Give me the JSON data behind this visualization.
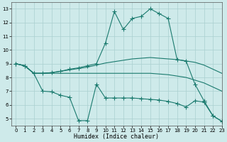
{
  "xlabel": "Humidex (Indice chaleur)",
  "xlim": [
    -0.5,
    23
  ],
  "ylim": [
    4.5,
    13.5
  ],
  "yticks": [
    5,
    6,
    7,
    8,
    9,
    10,
    11,
    12,
    13
  ],
  "xticks": [
    0,
    1,
    2,
    3,
    4,
    5,
    6,
    7,
    8,
    9,
    10,
    11,
    12,
    13,
    14,
    15,
    16,
    17,
    18,
    19,
    20,
    21,
    22,
    23
  ],
  "bg_color": "#ceeaea",
  "line_color": "#1a7a6e",
  "grid_color": "#aad0d0",
  "line1_x": [
    0,
    1,
    2,
    3,
    4,
    5,
    6,
    7,
    8,
    9,
    10,
    11,
    12,
    13,
    14,
    15,
    16,
    17,
    18,
    19,
    20,
    21,
    22,
    23
  ],
  "line1_y": [
    9.0,
    8.85,
    8.3,
    8.3,
    8.35,
    8.45,
    8.55,
    8.65,
    8.75,
    8.9,
    9.05,
    9.15,
    9.25,
    9.35,
    9.4,
    9.45,
    9.4,
    9.35,
    9.3,
    9.2,
    9.1,
    8.9,
    8.6,
    8.3
  ],
  "line2_x": [
    0,
    1,
    2,
    3,
    4,
    5,
    6,
    7,
    8,
    9,
    10,
    11,
    12,
    13,
    14,
    15,
    16,
    17,
    18,
    19,
    20,
    21,
    22,
    23
  ],
  "line2_y": [
    9.0,
    8.85,
    8.3,
    8.3,
    8.3,
    8.3,
    8.3,
    8.3,
    8.3,
    8.3,
    8.3,
    8.3,
    8.3,
    8.3,
    8.3,
    8.3,
    8.25,
    8.2,
    8.1,
    8.0,
    7.8,
    7.6,
    7.3,
    7.0
  ],
  "line3_x": [
    0,
    1,
    2,
    3,
    4,
    5,
    6,
    7,
    8,
    9,
    10,
    11,
    12,
    13,
    14,
    15,
    16,
    17,
    18,
    19,
    20,
    21,
    22,
    23
  ],
  "line3_y": [
    9.0,
    8.85,
    8.3,
    7.0,
    6.95,
    6.7,
    6.55,
    4.85,
    4.85,
    7.5,
    6.5,
    6.5,
    6.5,
    6.5,
    6.45,
    6.4,
    6.35,
    6.25,
    6.1,
    5.85,
    6.3,
    6.2,
    5.2,
    4.8
  ],
  "line4_x": [
    0,
    1,
    2,
    3,
    4,
    5,
    6,
    7,
    8,
    9,
    10,
    11,
    12,
    13,
    14,
    15,
    16,
    17,
    18,
    19,
    20,
    21,
    22,
    23
  ],
  "line4_y": [
    9.0,
    8.85,
    8.3,
    8.3,
    8.35,
    8.45,
    8.6,
    8.7,
    8.85,
    9.0,
    10.5,
    12.8,
    11.5,
    12.3,
    12.45,
    13.0,
    12.65,
    12.3,
    9.3,
    9.2,
    7.5,
    6.3,
    5.2,
    4.8
  ]
}
